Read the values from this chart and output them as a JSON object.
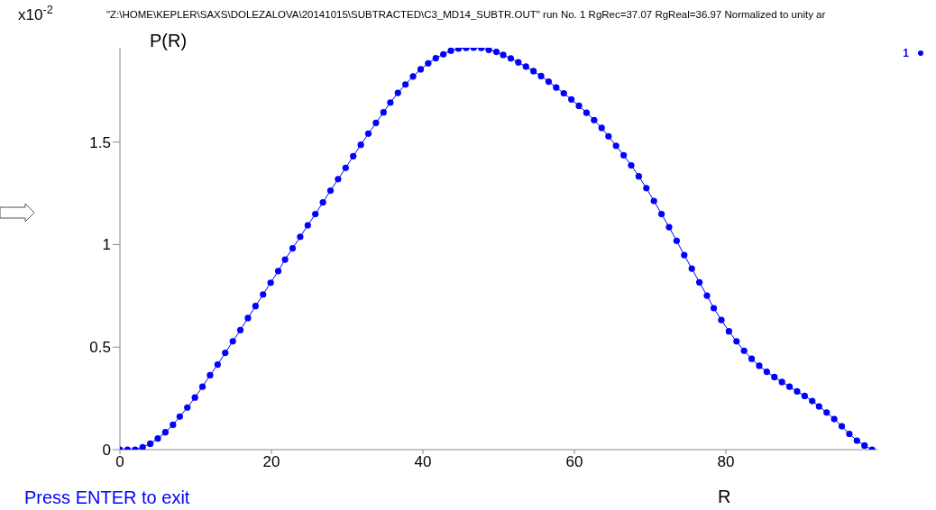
{
  "chart_data": {
    "type": "line",
    "title": "\"Z:\\HOME\\KEPLER\\SAXS\\DOLEZALOVA\\20141015\\SUBTRACTED\\C3_MD14_SUBTR.OUT\" run No. 1 RgRec=37.07 RgReal=36.97 Normalized to unity ar",
    "ylabel": "P(R)",
    "xlabel": "R",
    "annotations": [
      "x10$^{-2}$",
      "Press ENTER to exit"
    ],
    "x": [
      0,
      1.0,
      2.0,
      3.0,
      4.0,
      5.0,
      6.0,
      7.0,
      7.9,
      8.9,
      9.9,
      10.9,
      11.9,
      12.9,
      13.9,
      14.9,
      15.9,
      16.9,
      17.9,
      18.9,
      19.9,
      20.9,
      21.8,
      22.8,
      23.8,
      24.8,
      25.8,
      26.8,
      27.8,
      28.8,
      29.8,
      30.8,
      31.8,
      32.8,
      33.8,
      34.8,
      35.7,
      36.7,
      37.7,
      38.7,
      39.7,
      40.7,
      41.7,
      42.7,
      43.7,
      44.7,
      45.7,
      46.7,
      47.7,
      48.7,
      49.7,
      50.6,
      51.6,
      52.6,
      53.6,
      54.6,
      55.6,
      56.6,
      57.6,
      58.6,
      59.6,
      60.6,
      61.6,
      62.6,
      63.6,
      64.5,
      65.5,
      66.5,
      67.5,
      68.5,
      69.5,
      70.5,
      71.5,
      72.5,
      73.5,
      74.5,
      75.5,
      76.5,
      77.5,
      78.4,
      79.4,
      80.4,
      81.4,
      82.4,
      83.4,
      84.4,
      85.4,
      86.4,
      87.4,
      88.4,
      89.4,
      90.4,
      91.4,
      92.3,
      93.3,
      94.3,
      95.3,
      96.3,
      97.3,
      98.3,
      99.3
    ],
    "series": [
      {
        "name": "1",
        "color": "#0000ff",
        "values": [
          0,
          0,
          0,
          0.012,
          0.029,
          0.054,
          0.085,
          0.121,
          0.161,
          0.205,
          0.254,
          0.307,
          0.363,
          0.415,
          0.472,
          0.528,
          0.583,
          0.642,
          0.7,
          0.757,
          0.814,
          0.871,
          0.927,
          0.982,
          1.038,
          1.094,
          1.149,
          1.206,
          1.263,
          1.319,
          1.374,
          1.431,
          1.487,
          1.541,
          1.594,
          1.645,
          1.693,
          1.74,
          1.781,
          1.82,
          1.855,
          1.884,
          1.909,
          1.928,
          1.946,
          1.956,
          1.959,
          1.96,
          1.959,
          1.95,
          1.94,
          1.925,
          1.908,
          1.889,
          1.868,
          1.846,
          1.822,
          1.795,
          1.766,
          1.738,
          1.708,
          1.677,
          1.643,
          1.607,
          1.569,
          1.528,
          1.482,
          1.436,
          1.386,
          1.333,
          1.275,
          1.213,
          1.149,
          1.085,
          1.018,
          0.949,
          0.883,
          0.816,
          0.751,
          0.69,
          0.632,
          0.577,
          0.528,
          0.482,
          0.443,
          0.409,
          0.38,
          0.354,
          0.33,
          0.307,
          0.284,
          0.262,
          0.237,
          0.211,
          0.181,
          0.149,
          0.114,
          0.077,
          0.044,
          0.02,
          0
        ]
      }
    ],
    "xlim": [
      0,
      100
    ],
    "xticks": [
      0,
      20,
      40,
      60,
      80
    ],
    "ylim": [
      0,
      1.96
    ],
    "yticks": [
      0,
      0.5,
      1,
      1.5
    ],
    "legend": "top right",
    "marker": "circle",
    "line_style": "solid"
  }
}
